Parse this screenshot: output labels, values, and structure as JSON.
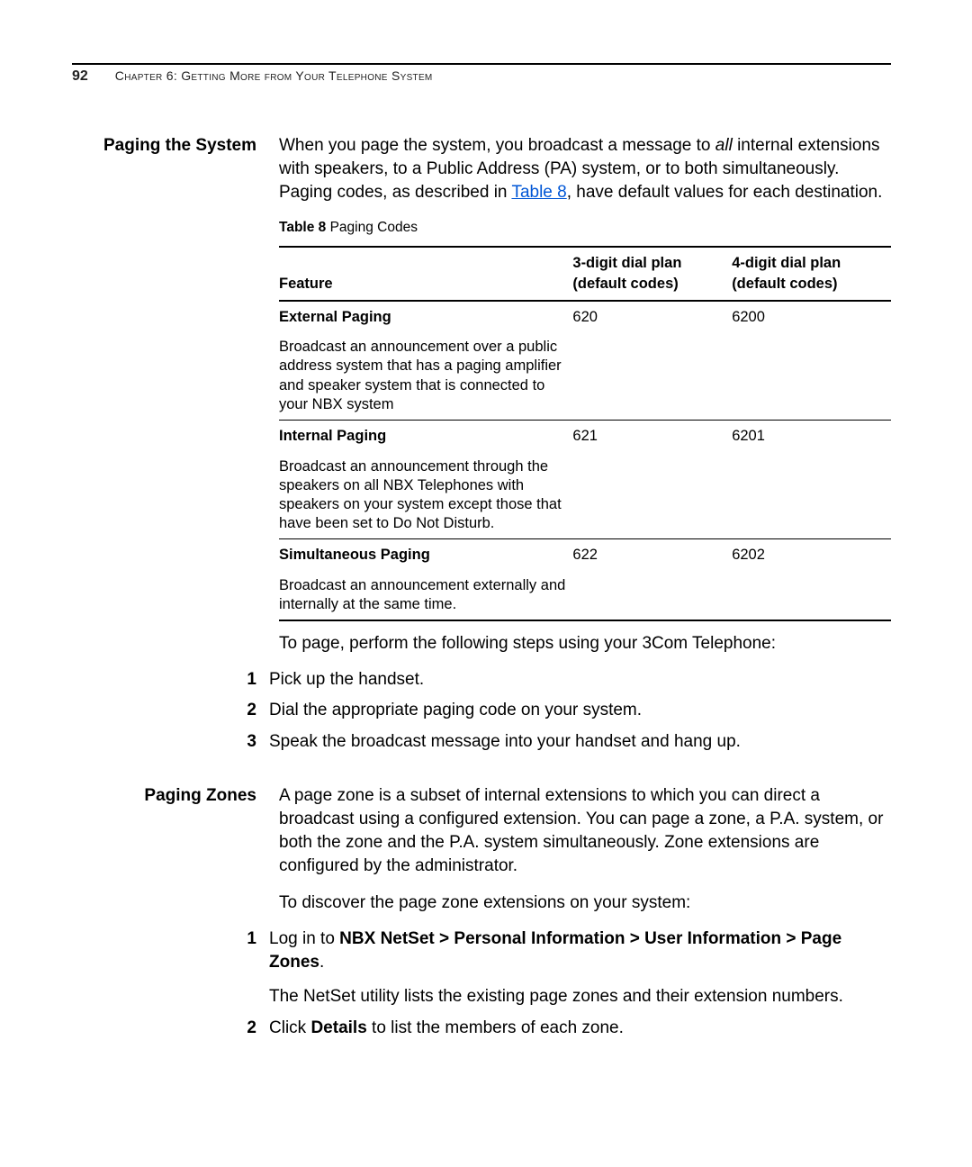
{
  "header": {
    "page_number": "92",
    "chapter_label": "Chapter 6: Getting More from Your Telephone System"
  },
  "section1": {
    "heading": "Paging the System",
    "intro_pre": "When you page the system, you broadcast a message to ",
    "intro_italic": "all",
    "intro_mid": " internal extensions with speakers, to a Public Address (PA) system, or to both simultaneously. Paging codes, as described in ",
    "table_link": "Table 8",
    "intro_post": ", have default values for each destination.",
    "table_caption_bold": "Table 8",
    "table_caption_rest": "   Paging Codes",
    "table": {
      "headers": {
        "feature": "Feature",
        "three": "3-digit dial plan (default codes)",
        "four": "4-digit dial plan (default codes)"
      },
      "rows": [
        {
          "title": "External Paging",
          "desc": "Broadcast an announcement over a public address system that has a paging amplifier and speaker system that is connected to your NBX system",
          "three": "620",
          "four": "6200"
        },
        {
          "title": "Internal Paging",
          "desc": "Broadcast an announcement through the speakers on all NBX Telephones with speakers on your system except those that have been set to Do Not Disturb.",
          "three": "621",
          "four": "6201"
        },
        {
          "title": "Simultaneous Paging",
          "desc": "Broadcast an announcement externally and internally at the same time.",
          "three": "622",
          "four": "6202"
        }
      ]
    },
    "steps_intro": "To page, perform the following steps using your 3Com Telephone:",
    "steps": [
      "Pick up the handset.",
      "Dial the appropriate paging code on your system.",
      "Speak the broadcast message into your handset and hang up."
    ]
  },
  "section2": {
    "heading": "Paging Zones",
    "intro": "A page zone is a subset of internal extensions to which you can direct a broadcast using a configured extension. You can page a zone, a P.A. system, or both the zone and the P.A. system simultaneously. Zone extensions are configured by the administrator.",
    "discover": "To discover the page zone extensions on your system:",
    "step1_pre": "Log in to ",
    "step1_bold": "NBX NetSet > Personal Information > User Information > Page Zones",
    "step1_post": ".",
    "step1_note": "The NetSet utility lists the existing page zones and their extension numbers.",
    "step2_pre": "Click ",
    "step2_bold": "Details",
    "step2_post": " to list the members of each zone."
  }
}
